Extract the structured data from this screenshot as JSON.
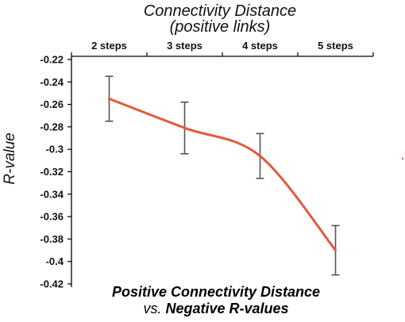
{
  "chart_data": {
    "type": "line",
    "title": "Connectivity Distance",
    "subtitle": "(positive links)",
    "xlabel": "",
    "ylabel": "R-value",
    "categories": [
      "2 steps",
      "3 steps",
      "4 steps",
      "5 steps"
    ],
    "x_axis_position": "top",
    "series": [
      {
        "values": [
          -0.255,
          -0.281,
          -0.306,
          -0.39
        ],
        "error": [
          0.02,
          0.023,
          0.02,
          0.022
        ],
        "color": "#e4583e"
      }
    ],
    "ylim": [
      -0.42,
      -0.22
    ],
    "yticks": [
      -0.22,
      -0.24,
      -0.26,
      -0.28,
      -0.3,
      -0.32,
      -0.34,
      -0.36,
      -0.38,
      -0.4,
      -0.42
    ],
    "ytick_labels": [
      "-0.22",
      "-0.24",
      "-0.26",
      "-0.28",
      "-0.3",
      "-0.32",
      "-0.34",
      "-0.36",
      "-0.38",
      "-0.4",
      "-0.42"
    ],
    "grid": false,
    "annotation": {
      "line1": "Positive Connectivity Distance",
      "line2_prefix": "vs. ",
      "line2_strong": "Negative R-values"
    },
    "error_bar_color": "#555555"
  }
}
